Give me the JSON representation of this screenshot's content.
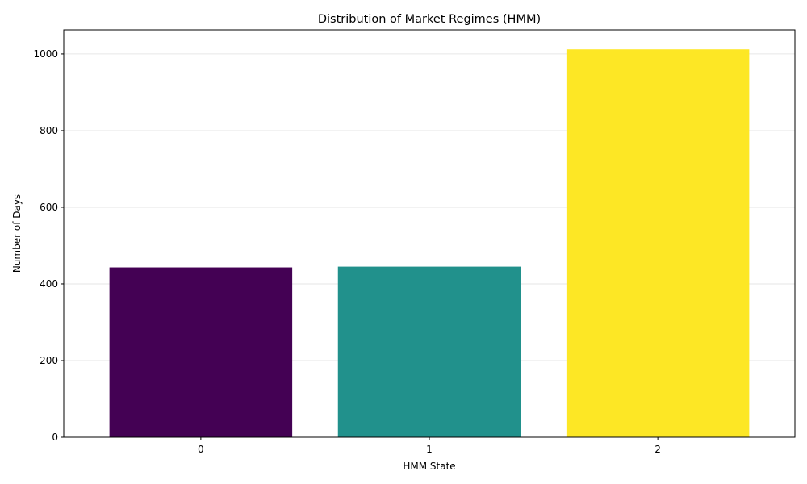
{
  "chart_data": {
    "type": "bar",
    "title": "Distribution of Market Regimes (HMM)",
    "xlabel": "HMM State",
    "ylabel": "Number of Days",
    "categories": [
      "0",
      "1",
      "2"
    ],
    "values": [
      443,
      445,
      1012
    ],
    "colors": [
      "#440154",
      "#21918c",
      "#fde725"
    ],
    "ylim": [
      0,
      1063
    ],
    "yticks": [
      0,
      200,
      400,
      600,
      800,
      1000
    ],
    "ytick_labels": [
      "0",
      "200",
      "400",
      "600",
      "800",
      "1000"
    ],
    "grid": "y",
    "legend": "none"
  }
}
